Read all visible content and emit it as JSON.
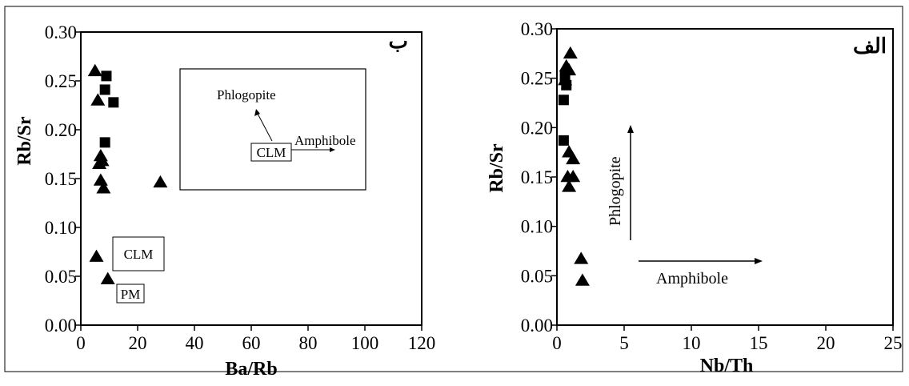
{
  "chart_data": [
    {
      "type": "scatter",
      "panel_label": "ب",
      "xlabel": "Ba/Rb",
      "ylabel": "Rb/Sr",
      "xlim": [
        0,
        120
      ],
      "ylim": [
        0,
        0.3
      ],
      "x_ticks": [
        "0",
        "20",
        "40",
        "60",
        "80",
        "100",
        "120"
      ],
      "y_ticks": [
        "0.00",
        "0.05",
        "0.10",
        "0.15",
        "0.20",
        "0.25",
        "0.30"
      ],
      "grid": false,
      "series": [
        {
          "marker": "triangle",
          "points": [
            {
              "x": 5,
              "y": 0.26
            },
            {
              "x": 6,
              "y": 0.23
            },
            {
              "x": 7,
              "y": 0.173
            },
            {
              "x": 7.5,
              "y": 0.168
            },
            {
              "x": 6.5,
              "y": 0.165
            },
            {
              "x": 7,
              "y": 0.148
            },
            {
              "x": 8,
              "y": 0.14
            },
            {
              "x": 28,
              "y": 0.146
            },
            {
              "x": 5.5,
              "y": 0.07
            },
            {
              "x": 9.5,
              "y": 0.047
            }
          ]
        },
        {
          "marker": "square",
          "points": [
            {
              "x": 9,
              "y": 0.255
            },
            {
              "x": 8.5,
              "y": 0.241
            },
            {
              "x": 11.5,
              "y": 0.228
            },
            {
              "x": 8.5,
              "y": 0.187
            }
          ]
        }
      ],
      "annotations": {
        "inset_phlogopite": "Phlogopite",
        "inset_amphibole": "Amphibole",
        "inset_clm": "CLM",
        "clm_box": "CLM",
        "pm_box": "PM"
      }
    },
    {
      "type": "scatter",
      "panel_label": "الف",
      "xlabel": "Nb/Th",
      "ylabel": "Rb/Sr",
      "xlim": [
        0,
        25
      ],
      "ylim": [
        0,
        0.3
      ],
      "x_ticks": [
        "0",
        "5",
        "10",
        "15",
        "20",
        "25"
      ],
      "y_ticks": [
        "0.00",
        "0.05",
        "0.10",
        "0.15",
        "0.20",
        "0.25",
        "0.30"
      ],
      "grid": false,
      "series": [
        {
          "marker": "triangle",
          "points": [
            {
              "x": 1.0,
              "y": 0.275
            },
            {
              "x": 0.7,
              "y": 0.262
            },
            {
              "x": 0.9,
              "y": 0.258
            },
            {
              "x": 0.6,
              "y": 0.248
            },
            {
              "x": 0.9,
              "y": 0.175
            },
            {
              "x": 1.2,
              "y": 0.168
            },
            {
              "x": 0.8,
              "y": 0.15
            },
            {
              "x": 1.2,
              "y": 0.15
            },
            {
              "x": 0.9,
              "y": 0.14
            },
            {
              "x": 1.8,
              "y": 0.067
            },
            {
              "x": 1.9,
              "y": 0.045
            }
          ]
        },
        {
          "marker": "square",
          "points": [
            {
              "x": 0.6,
              "y": 0.252
            },
            {
              "x": 0.7,
              "y": 0.243
            },
            {
              "x": 0.5,
              "y": 0.228
            },
            {
              "x": 0.5,
              "y": 0.187
            }
          ]
        }
      ],
      "annotations": {
        "phlogopite": "Phlogopite",
        "amphibole": "Amphibole"
      }
    }
  ]
}
